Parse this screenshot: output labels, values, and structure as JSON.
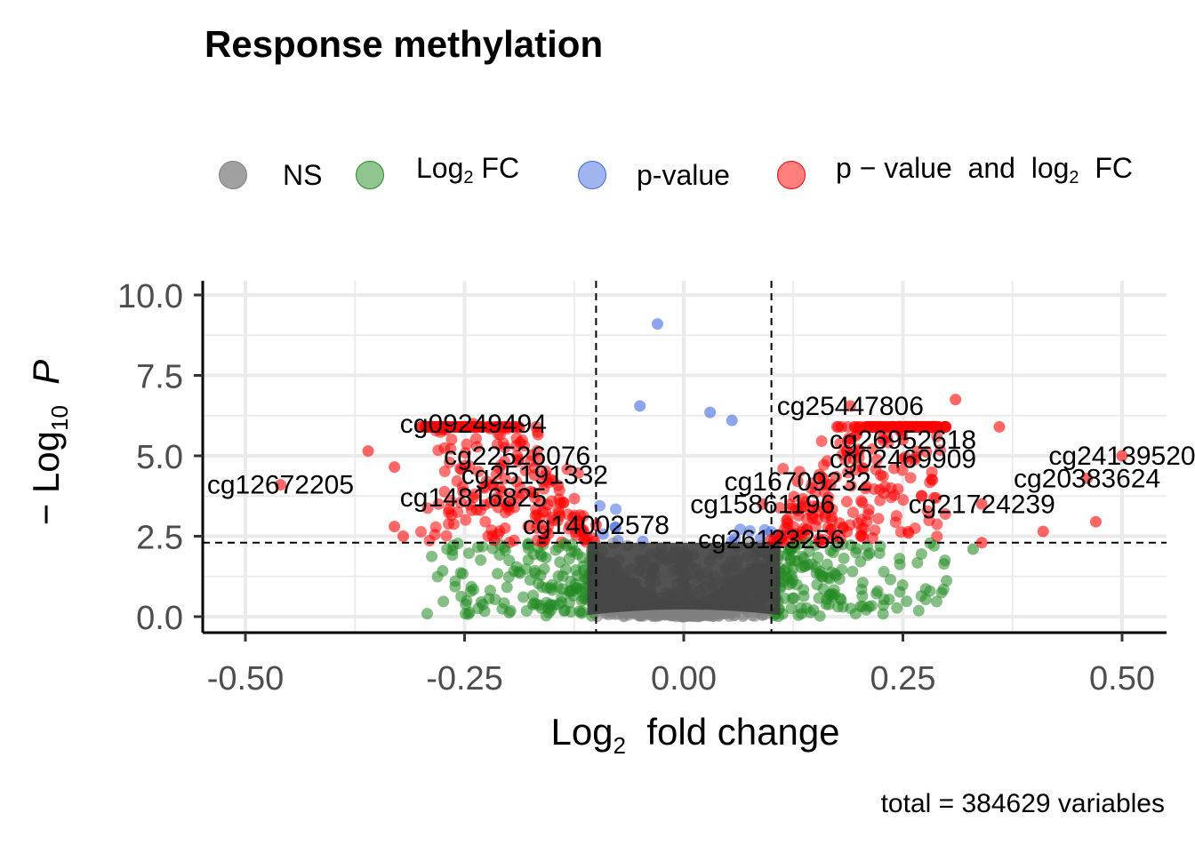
{
  "chart_data": {
    "type": "scatter",
    "title": "Response methylation",
    "subtitle": "",
    "xlabel": "Log2 fold change",
    "ylabel": "-Log10 P",
    "xlim": [
      -0.55,
      0.55
    ],
    "ylim": [
      -0.5,
      10.5
    ],
    "x_ticks": [
      "-0.50",
      "-0.25",
      "0.00",
      "0.25",
      "0.50"
    ],
    "y_ticks": [
      "0.0",
      "2.5",
      "5.0",
      "7.5",
      "10.0"
    ],
    "grid": true,
    "legend_position": "top",
    "fc_cutoff": 0.1,
    "p_cutoff_log10": 2.3,
    "caption": "total = 384629 variables",
    "legend": [
      {
        "key": "NS",
        "label": "NS",
        "color": "#808080"
      },
      {
        "key": "FC",
        "label": "Log",
        "sub": "2",
        "suffix": " FC",
        "color": "#228B22"
      },
      {
        "key": "P",
        "label": "p-value",
        "color": "#4169E1"
      },
      {
        "key": "P_FC",
        "label": "p − value  and  log",
        "sub": "2",
        "suffix": "  FC",
        "color": "#FF0000"
      }
    ],
    "labeled_points": [
      {
        "name": "cg12672205",
        "x": -0.46,
        "y": 4.1
      },
      {
        "name": "cg09249494",
        "x": -0.24,
        "y": 6.0
      },
      {
        "name": "cg22526076",
        "x": -0.19,
        "y": 5.0
      },
      {
        "name": "cg25191332",
        "x": -0.17,
        "y": 4.4
      },
      {
        "name": "cg14816825",
        "x": -0.24,
        "y": 3.7
      },
      {
        "name": "cg14002578",
        "x": -0.1,
        "y": 2.85
      },
      {
        "name": "cg25447806",
        "x": 0.19,
        "y": 6.55
      },
      {
        "name": "cg26952618",
        "x": 0.25,
        "y": 5.5
      },
      {
        "name": "cg02469909",
        "x": 0.25,
        "y": 4.9
      },
      {
        "name": "cg24139520",
        "x": 0.5,
        "y": 5.0
      },
      {
        "name": "cg16709232",
        "x": 0.13,
        "y": 4.2
      },
      {
        "name": "cg20383624",
        "x": 0.46,
        "y": 4.3
      },
      {
        "name": "cg15861196",
        "x": 0.09,
        "y": 3.5
      },
      {
        "name": "cg21724239",
        "x": 0.34,
        "y": 3.5
      },
      {
        "name": "cg26123256",
        "x": 0.1,
        "y": 2.4
      }
    ],
    "highlighted_points": [
      {
        "group": "P",
        "x": -0.03,
        "y": 9.1
      },
      {
        "group": "P",
        "x": -0.05,
        "y": 6.55
      },
      {
        "group": "P",
        "x": 0.03,
        "y": 6.35
      },
      {
        "group": "P",
        "x": 0.055,
        "y": 6.1
      },
      {
        "group": "P_FC",
        "x": -0.36,
        "y": 5.15
      },
      {
        "group": "P_FC",
        "x": -0.33,
        "y": 4.65
      },
      {
        "group": "P_FC",
        "x": -0.32,
        "y": 2.5
      },
      {
        "group": "P_FC",
        "x": -0.33,
        "y": 2.8
      },
      {
        "group": "P_FC",
        "x": 0.31,
        "y": 6.75
      },
      {
        "group": "P_FC",
        "x": 0.36,
        "y": 5.9
      },
      {
        "group": "P_FC",
        "x": 0.41,
        "y": 2.65
      },
      {
        "group": "P_FC",
        "x": 0.47,
        "y": 2.95
      },
      {
        "group": "FC",
        "x": 0.33,
        "y": 2.1
      },
      {
        "group": "P_FC",
        "x": 0.34,
        "y": 2.3
      }
    ]
  }
}
